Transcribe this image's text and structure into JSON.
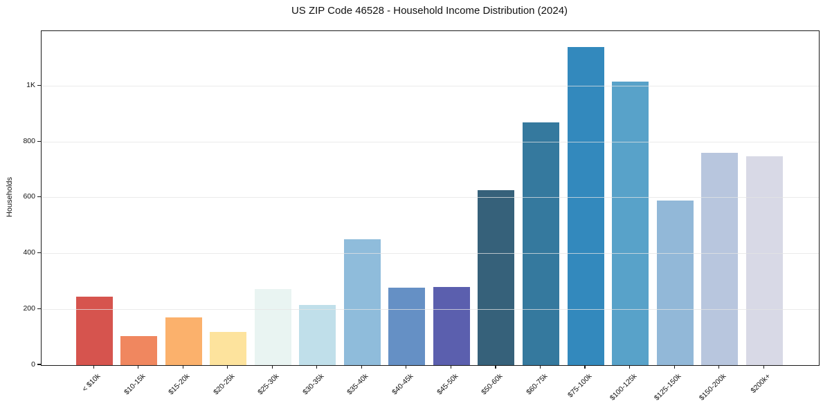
{
  "chart_data": {
    "type": "bar",
    "title": "US ZIP Code 46528 - Household Income Distribution (2024)",
    "xlabel": "",
    "ylabel": "Households",
    "categories": [
      "< $10k",
      "$10-15k",
      "$15-20k",
      "$20-25k",
      "$25-30k",
      "$30-35k",
      "$35-40k",
      "$40-45k",
      "$45-50k",
      "$50-60k",
      "$60-75k",
      "$75-100k",
      "$100-125k",
      "$125-150k",
      "$150-200k",
      "$200k+"
    ],
    "values": [
      245,
      105,
      170,
      120,
      273,
      215,
      450,
      277,
      280,
      628,
      870,
      1140,
      1015,
      590,
      760,
      748
    ],
    "bar_colors": [
      "#d6544e",
      "#f0875f",
      "#fbb16c",
      "#fde39d",
      "#e9f4f2",
      "#c0dfea",
      "#8fbcdb",
      "#6590c5",
      "#5b5fae",
      "#36617a",
      "#35799e",
      "#3389bd",
      "#58a2c9",
      "#92b8d8",
      "#b8c6de",
      "#d8d9e6"
    ],
    "ylim": [
      0,
      1197
    ],
    "yticks": [
      {
        "value": 0,
        "label": "0"
      },
      {
        "value": 200,
        "label": "200"
      },
      {
        "value": 400,
        "label": "400"
      },
      {
        "value": 600,
        "label": "600"
      },
      {
        "value": 800,
        "label": "800"
      },
      {
        "value": 1000,
        "label": "1K"
      }
    ],
    "grid": "horizontal",
    "legend": "none",
    "xtick_rotation": 45,
    "background": "#ffffff"
  }
}
